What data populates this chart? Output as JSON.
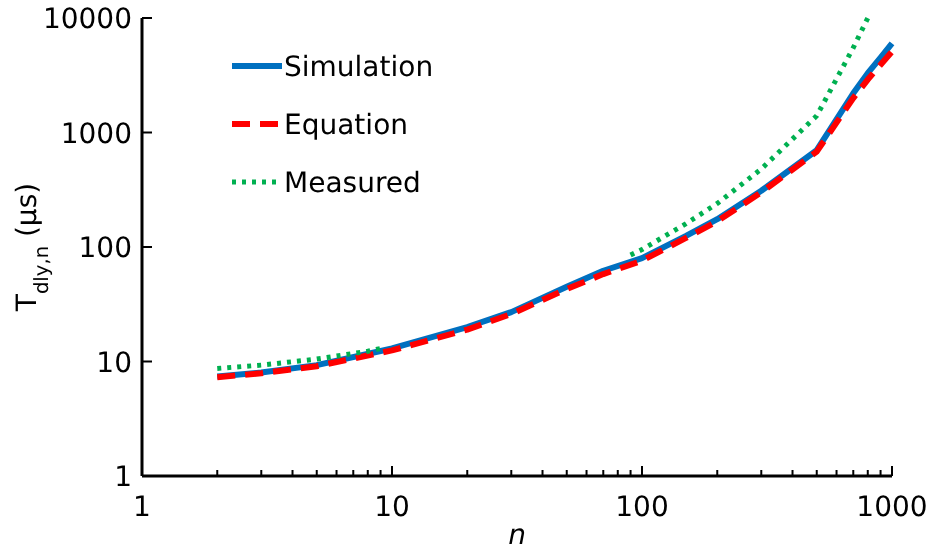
{
  "chart_data": {
    "type": "line",
    "xlabel": "n",
    "ylabel": "T$_{dly,n}$ (µs)",
    "log": "xy",
    "grid": false,
    "legend": "top left",
    "xlim": [
      1,
      1000
    ],
    "ylim": [
      1,
      10000
    ],
    "xticks": [
      1,
      {
        "value": 2,
        "label": null
      },
      {
        "value": 3,
        "label": null
      },
      {
        "value": 4,
        "label": null
      },
      {
        "value": 5,
        "label": null
      },
      {
        "value": 6,
        "label": null
      },
      {
        "value": 7,
        "label": null
      },
      {
        "value": 8,
        "label": null
      },
      {
        "value": 9,
        "label": null
      },
      10,
      {
        "value": 20,
        "label": null
      },
      {
        "value": 30,
        "label": null
      },
      {
        "value": 40,
        "label": null
      },
      {
        "value": 50,
        "label": null
      },
      {
        "value": 60,
        "label": null
      },
      {
        "value": 70,
        "label": null
      },
      {
        "value": 80,
        "label": null
      },
      {
        "value": 90,
        "label": null
      },
      100,
      {
        "value": 200,
        "label": null
      },
      {
        "value": 300,
        "label": null
      },
      {
        "value": 400,
        "label": null
      },
      {
        "value": 500,
        "label": null
      },
      {
        "value": 600,
        "label": null
      },
      {
        "value": 700,
        "label": null
      },
      {
        "value": 800,
        "label": null
      },
      {
        "value": 900,
        "label": null
      },
      1000
    ],
    "yticks": [
      1,
      10,
      100,
      1000,
      10000
    ],
    "series": [
      {
        "name": "Simulation",
        "color": "#0070c0",
        "line_style": "solid",
        "x": [
          2,
          3,
          5,
          10,
          20,
          30,
          50,
          70,
          100,
          150,
          200,
          300,
          500,
          700,
          800,
          900,
          1000
        ],
        "values": [
          7.4,
          8,
          9.3,
          13,
          20,
          27,
          45,
          62,
          80,
          125,
          175,
          310,
          700,
          2200,
          3300,
          4500,
          6000
        ]
      },
      {
        "name": "Equation",
        "color": "#ff0000",
        "line_style": "dashed",
        "x": [
          2,
          3,
          5,
          10,
          20,
          30,
          50,
          70,
          100,
          150,
          200,
          300,
          500,
          700,
          800,
          900,
          1000
        ],
        "values": [
          7.3,
          7.9,
          9.1,
          12.5,
          19,
          26,
          43,
          58,
          76,
          120,
          168,
          300,
          680,
          2000,
          2900,
          3900,
          5100
        ]
      },
      {
        "name": "Measured",
        "color": "#00b050",
        "line_style": "dotted",
        "x": [
          2,
          3,
          5,
          8,
          9,
          50,
          90,
          100,
          150,
          200,
          300,
          500,
          700,
          800
        ],
        "values": [
          8.7,
          9.3,
          10.5,
          12.3,
          13,
          null,
          85,
          95,
          160,
          240,
          480,
          1400,
          5500,
          10000
        ]
      }
    ]
  }
}
